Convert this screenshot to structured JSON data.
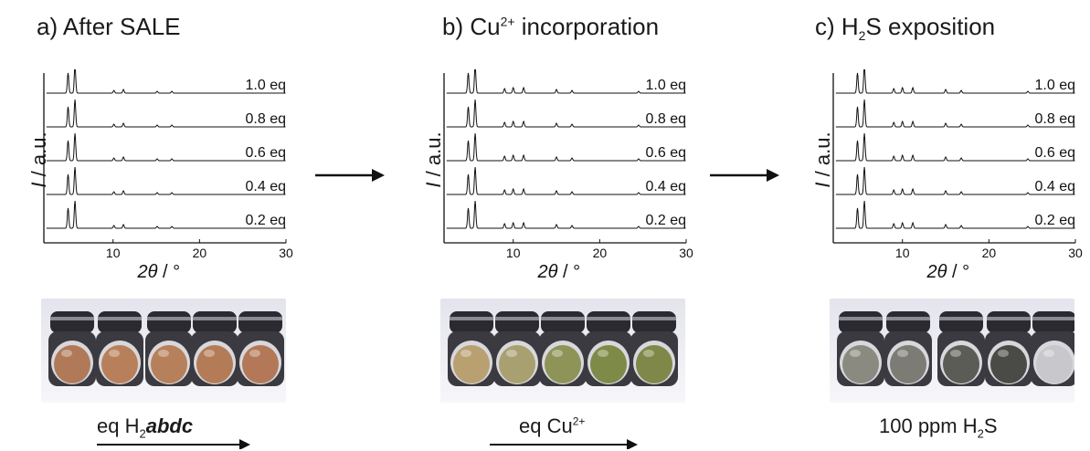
{
  "panels": [
    {
      "title_prefix": "a) After SALE",
      "ylabel_i": "I",
      "ylabel_rest": " / a.u.",
      "xlabel_theta": "2θ",
      "xlabel_rest": " / °",
      "trace_labels": [
        "1.0 eq",
        "0.8 eq",
        "0.6 eq",
        "0.4 eq",
        "0.2 eq"
      ],
      "x_ticks": [
        "10",
        "20",
        "30"
      ],
      "footer_main": "eq H",
      "footer_sub": "2",
      "footer_italic": "abdc"
    },
    {
      "title_prefix": "b) Cu",
      "title_sup": "2+",
      "title_suffix": " incorporation",
      "ylabel_i": "I",
      "ylabel_rest": " / a.u.",
      "xlabel_theta": "2θ",
      "xlabel_rest": " / °",
      "trace_labels": [
        "1.0 eq",
        "0.8 eq",
        "0.6 eq",
        "0.4 eq",
        "0.2 eq"
      ],
      "x_ticks": [
        "10",
        "20",
        "30"
      ],
      "footer_main": "eq Cu",
      "footer_sup": "2+"
    },
    {
      "title_prefix": "c) H",
      "title_sub": "2",
      "title_suffix": "S exposition",
      "ylabel_i": "I",
      "ylabel_rest": " / a.u.",
      "xlabel_theta": "2θ",
      "xlabel_rest": " / °",
      "trace_labels": [
        "1.0 eq",
        "0.8 eq",
        "0.6 eq",
        "0.4 eq",
        "0.2 eq"
      ],
      "x_ticks": [
        "10",
        "20",
        "30"
      ],
      "footer_main": "100 ppm H",
      "footer_sub": "2",
      "footer_tail": "S"
    }
  ],
  "vial_colors": {
    "panel_a": [
      "#b07a58",
      "#b8805a",
      "#b6805a",
      "#b47c56",
      "#b27858"
    ],
    "panel_b": [
      "#b8a070",
      "#a8a070",
      "#8e9458",
      "#7e8a48",
      "#7f8848"
    ],
    "panel_c": [
      "#8a8a80",
      "#7c7c74",
      "#5c5c56",
      "#4a4a46",
      "#c8c8cc"
    ]
  }
}
